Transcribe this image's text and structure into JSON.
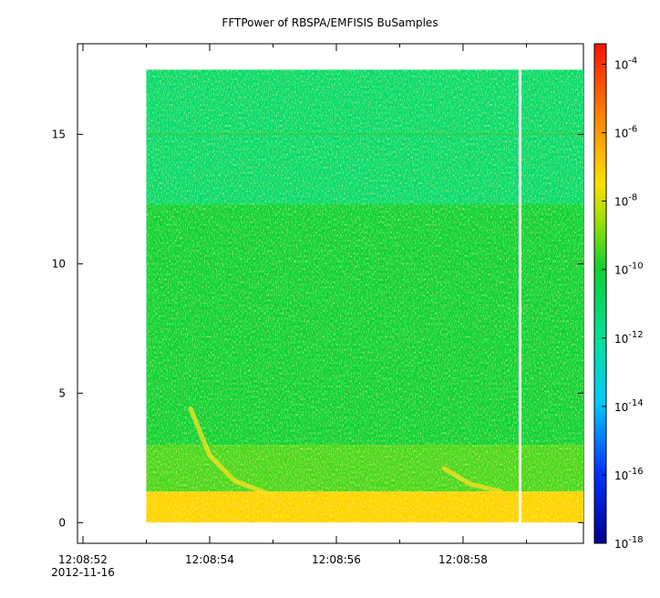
{
  "chart_data": {
    "type": "heatmap",
    "title": "FFTPower of RBSPA/EMFISIS  BuSamples",
    "xlabel": "",
    "ylabel": "",
    "y_ticks": [
      {
        "value": 0,
        "label": "0"
      },
      {
        "value": 5,
        "label": "5"
      },
      {
        "value": 10,
        "label": "10"
      },
      {
        "value": 15,
        "label": "15"
      }
    ],
    "ylim": [
      -0.8,
      18.5
    ],
    "x_range_seconds": [
      "12:08:52",
      "12:08:59.9"
    ],
    "x_ticks": [
      {
        "time": "12:08:52",
        "label": "12:08:52",
        "sublabel": "2012-11-16"
      },
      {
        "time": "12:08:54",
        "label": "12:08:54"
      },
      {
        "time": "12:08:56",
        "label": "12:08:56"
      },
      {
        "time": "12:08:58",
        "label": "12:08:58"
      }
    ],
    "x_minor_ticks": [
      "12:08:53",
      "12:08:55",
      "12:08:57",
      "12:08:59"
    ],
    "data_start": "12:08:53",
    "data_end": "12:08:59.9",
    "data_gap": "12:08:58.9",
    "freq_max": 17.5,
    "colorbar": {
      "scale": "log",
      "range": [
        -18,
        -3.4
      ],
      "ticks": [
        {
          "exp": -4,
          "base": "10",
          "sup": "-4"
        },
        {
          "exp": -6,
          "base": "10",
          "sup": "-6"
        },
        {
          "exp": -8,
          "base": "10",
          "sup": "-8"
        },
        {
          "exp": -10,
          "base": "10",
          "sup": "-10"
        },
        {
          "exp": -12,
          "base": "10",
          "sup": "-12"
        },
        {
          "exp": -14,
          "base": "10",
          "sup": "-14"
        },
        {
          "exp": -16,
          "base": "10",
          "sup": "-16"
        },
        {
          "exp": -18,
          "base": "10",
          "sup": "-18"
        }
      ]
    },
    "bands": [
      {
        "f_from": 12.3,
        "f_to": 17.5,
        "log_power": -11.2
      },
      {
        "f_from": 3.0,
        "f_to": 12.3,
        "log_power": -10.1
      },
      {
        "f_from": 1.2,
        "f_to": 3.0,
        "log_power": -9.4
      },
      {
        "f_from": 0.0,
        "f_to": 1.2,
        "log_power": -7.2
      }
    ],
    "features": [
      {
        "name": "chorus-rising-tone-1",
        "points": [
          [
            "12:08:53.7",
            4.4
          ],
          [
            "12:08:54.0",
            2.6
          ],
          [
            "12:08:54.4",
            1.6
          ],
          [
            "12:08:55.0",
            1.05
          ]
        ]
      },
      {
        "name": "chorus-rising-tone-2",
        "points": [
          [
            "12:08:57.7",
            2.1
          ],
          [
            "12:08:58.1",
            1.5
          ],
          [
            "12:08:58.6",
            1.2
          ]
        ]
      }
    ],
    "line_feature": {
      "freq": 15.0
    }
  }
}
